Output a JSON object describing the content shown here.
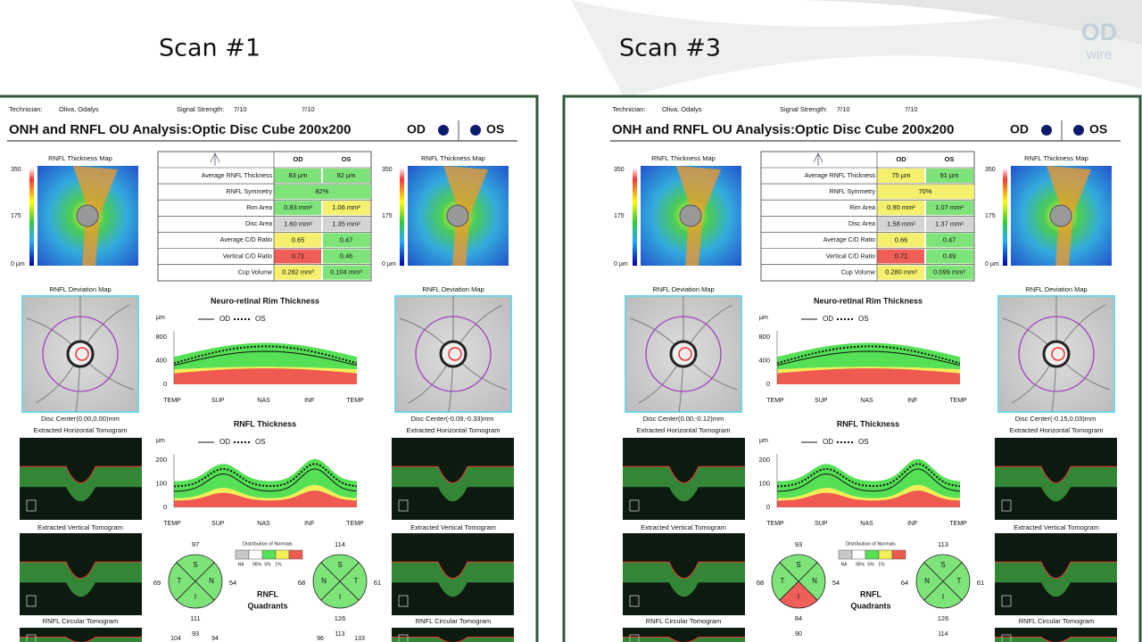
{
  "logo": {
    "brand": "OD",
    "sub": "wire"
  },
  "slide": {
    "scans": [
      {
        "heading": "Scan #1",
        "technician_label": "Technician:",
        "technician": "Oliva, Odalys",
        "signal_label": "Signal Strength:",
        "signal_od": "7/10",
        "signal_os": "7/10",
        "title": "ONH and RNFL OU Analysis:Optic Disc Cube 200x200",
        "eyes": [
          "OD",
          "OS"
        ],
        "thickness_map": {
          "title": "RNFL Thickness Map",
          "scale": [
            "350",
            "175",
            "0 µm"
          ]
        },
        "table": {
          "header": [
            "OD",
            "OS"
          ],
          "rows": [
            {
              "label": "Average RNFL Thickness",
              "od": "83 µm",
              "os": "92 µm",
              "od_color": "#7ee47a",
              "os_color": "#7ee47a"
            },
            {
              "label": "RNFL Symmetry",
              "both": "82%",
              "color": "#7ee47a"
            },
            {
              "label": "Rim Area",
              "od": "0.93 mm²",
              "os": "1.06 mm²",
              "od_color": "#7ee47a",
              "os_color": "#f4ef6c"
            },
            {
              "label": "Disc Area",
              "od": "1.60 mm²",
              "os": "1.35 mm²",
              "od_color": "#d4d4d4",
              "os_color": "#d4d4d4"
            },
            {
              "label": "Average C/D Ratio",
              "od": "0.65",
              "os": "0.47",
              "od_color": "#f4ef6c",
              "os_color": "#7ee47a"
            },
            {
              "label": "Vertical C/D Ratio",
              "od": "0.71",
              "os": "0.46",
              "od_color": "#ef5f58",
              "os_color": "#7ee47a"
            },
            {
              "label": "Cup Volume",
              "od": "0.282 mm³",
              "os": "0.104 mm³",
              "od_color": "#f4ef6c",
              "os_color": "#7ee47a"
            }
          ]
        },
        "deviation_title": "RNFL Deviation Map",
        "disc_center_od": "Disc Center(0.00,0.00)mm",
        "disc_center_os": "Disc Center(-0.09,-0.33)mm",
        "tomograms": [
          "Extracted Horizontal Tomogram",
          "Extracted Vertical Tomogram",
          "RNFL Circular Tomogram"
        ],
        "rim_chart": {
          "title": "Neuro-retinal Rim Thickness",
          "unit": "µm",
          "legend": [
            "OD",
            "OS"
          ],
          "yticks": [
            800,
            400,
            0
          ],
          "xlabels": [
            "TEMP",
            "SUP",
            "NAS",
            "INF",
            "TEMP"
          ]
        },
        "rnfl_chart": {
          "title": "RNFL Thickness",
          "unit": "µm",
          "legend": [
            "OD",
            "OS"
          ],
          "yticks": [
            200,
            100,
            0
          ],
          "xlabels": [
            "TEMP",
            "SUP",
            "NAS",
            "INF",
            "TEMP"
          ]
        },
        "normals": {
          "title": "Distribution of Normals",
          "labels": [
            "NA",
            "95%",
            "5%",
            "1%"
          ]
        },
        "quadrants_title": [
          "RNFL",
          "Quadrants"
        ],
        "quadrants": {
          "od": {
            "letters": [
              "S",
              "T",
              "N",
              "I"
            ],
            "values": [
              97,
              69,
              54,
              111
            ],
            "colors": [
              "#7ee47a",
              "#7ee47a",
              "#7ee47a",
              "#7ee47a"
            ],
            "clock": [
              93,
              104,
              94
            ]
          },
          "os": {
            "letters": [
              "S",
              "N",
              "T",
              "I"
            ],
            "values": [
              114,
              68,
              61,
              126
            ],
            "colors": [
              "#7ee47a",
              "#7ee47a",
              "#7ee47a",
              "#7ee47a"
            ],
            "clock": [
              113,
              96,
              133
            ]
          }
        }
      },
      {
        "heading": "Scan #3",
        "technician_label": "Technician:",
        "technician": "Oliva, Odalys",
        "signal_label": "Signal Strength:",
        "signal_od": "7/10",
        "signal_os": "7/10",
        "title": "ONH and RNFL OU Analysis:Optic Disc Cube 200x200",
        "eyes": [
          "OD",
          "OS"
        ],
        "thickness_map": {
          "title": "RNFL Thickness Map",
          "scale": [
            "350",
            "175",
            "0 µm"
          ]
        },
        "table": {
          "header": [
            "OD",
            "OS"
          ],
          "rows": [
            {
              "label": "Average RNFL Thickness",
              "od": "75 µm",
              "os": "91 µm",
              "od_color": "#f4ef6c",
              "os_color": "#7ee47a"
            },
            {
              "label": "RNFL Symmetry",
              "both": "70%",
              "color": "#f4ef6c"
            },
            {
              "label": "Rim Area",
              "od": "0.90 mm²",
              "os": "1.07 mm²",
              "od_color": "#f4ef6c",
              "os_color": "#7ee47a"
            },
            {
              "label": "Disc Area",
              "od": "1.58 mm²",
              "os": "1.37 mm²",
              "od_color": "#d4d4d4",
              "os_color": "#d4d4d4"
            },
            {
              "label": "Average C/D Ratio",
              "od": "0.66",
              "os": "0.47",
              "od_color": "#f4ef6c",
              "os_color": "#7ee47a"
            },
            {
              "label": "Vertical C/D Ratio",
              "od": "0.71",
              "os": "0.49",
              "od_color": "#ef5f58",
              "os_color": "#7ee47a"
            },
            {
              "label": "Cup Volume",
              "od": "0.280 mm³",
              "os": "0.099 mm³",
              "od_color": "#f4ef6c",
              "os_color": "#7ee47a"
            }
          ]
        },
        "deviation_title": "RNFL Deviation Map",
        "disc_center_od": "Disc Center(0.00,-0.12)mm",
        "disc_center_os": "Disc Center(-0.15,0.03)mm",
        "tomograms": [
          "Extracted Horizontal Tomogram",
          "Extracted Vertical Tomogram",
          "RNFL Circular Tomogram"
        ],
        "rim_chart": {
          "title": "Neuro-retinal Rim Thickness",
          "unit": "µm",
          "legend": [
            "OD",
            "OS"
          ],
          "yticks": [
            800,
            400,
            0
          ],
          "xlabels": [
            "TEMP",
            "SUP",
            "NAS",
            "INF",
            "TEMP"
          ]
        },
        "rnfl_chart": {
          "title": "RNFL Thickness",
          "unit": "µm",
          "legend": [
            "OD",
            "OS"
          ],
          "yticks": [
            200,
            100,
            0
          ],
          "xlabels": [
            "TEMP",
            "SUP",
            "NAS",
            "INF",
            "TEMP"
          ]
        },
        "normals": {
          "title": "Distribution of Normals",
          "labels": [
            "NA",
            "95%",
            "5%",
            "1%"
          ]
        },
        "quadrants_title": [
          "RNFL",
          "Quadrants"
        ],
        "quadrants": {
          "od": {
            "letters": [
              "S",
              "T",
              "N",
              "I"
            ],
            "values": [
              93,
              68,
              54,
              84
            ],
            "colors": [
              "#7ee47a",
              "#7ee47a",
              "#7ee47a",
              "#ef5f58"
            ],
            "clock": [
              90
            ]
          },
          "os": {
            "letters": [
              "S",
              "N",
              "T",
              "I"
            ],
            "values": [
              113,
              64,
              61,
              126
            ],
            "colors": [
              "#7ee47a",
              "#7ee47a",
              "#7ee47a",
              "#7ee47a"
            ],
            "clock": [
              114
            ]
          }
        }
      }
    ]
  }
}
